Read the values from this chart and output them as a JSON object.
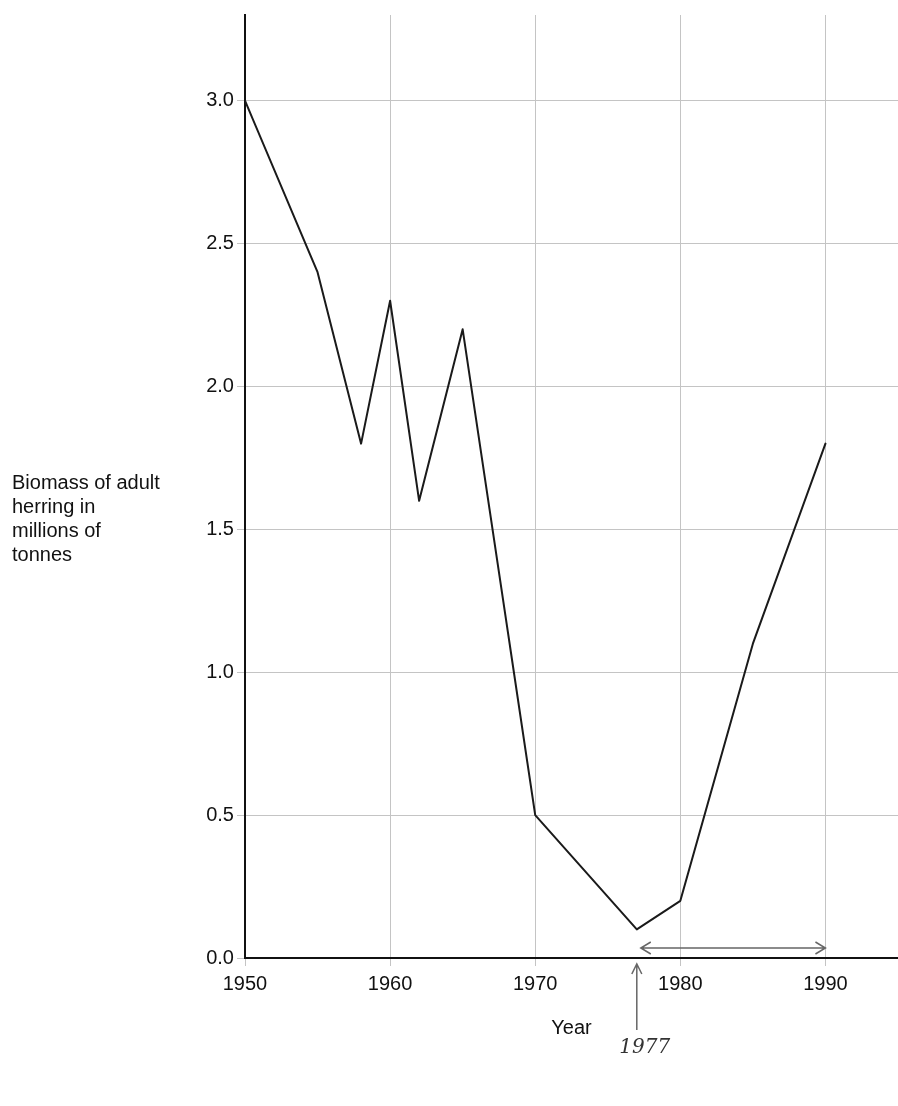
{
  "chart_data": {
    "type": "line",
    "xlabel": "Year",
    "ylabel": "Biomass of adult herring in millions of tonnes",
    "x": [
      1950,
      1955,
      1958,
      1960,
      1962,
      1965,
      1970,
      1977,
      1980,
      1985,
      1990
    ],
    "series": [
      {
        "color": "#1a1a1a",
        "values": [
          3.0,
          2.4,
          1.8,
          2.3,
          1.6,
          2.2,
          0.5,
          0.1,
          0.2,
          1.1,
          1.8
        ]
      }
    ],
    "xlim": [
      1950,
      1995
    ],
    "xticks": [
      1950,
      1960,
      1970,
      1980,
      1990
    ],
    "ylim": [
      0,
      3.3
    ],
    "yticks": [
      {
        "value": 0,
        "label": "0.0"
      },
      0.5,
      {
        "value": 1,
        "label": "1.0"
      },
      1.5,
      {
        "value": 2,
        "label": "2.0"
      },
      2.5,
      {
        "value": 3,
        "label": "3.0"
      }
    ],
    "annotations": [
      "1977"
    ],
    "grid": true,
    "legend": false,
    "marker": "none",
    "line_style": "solid"
  }
}
